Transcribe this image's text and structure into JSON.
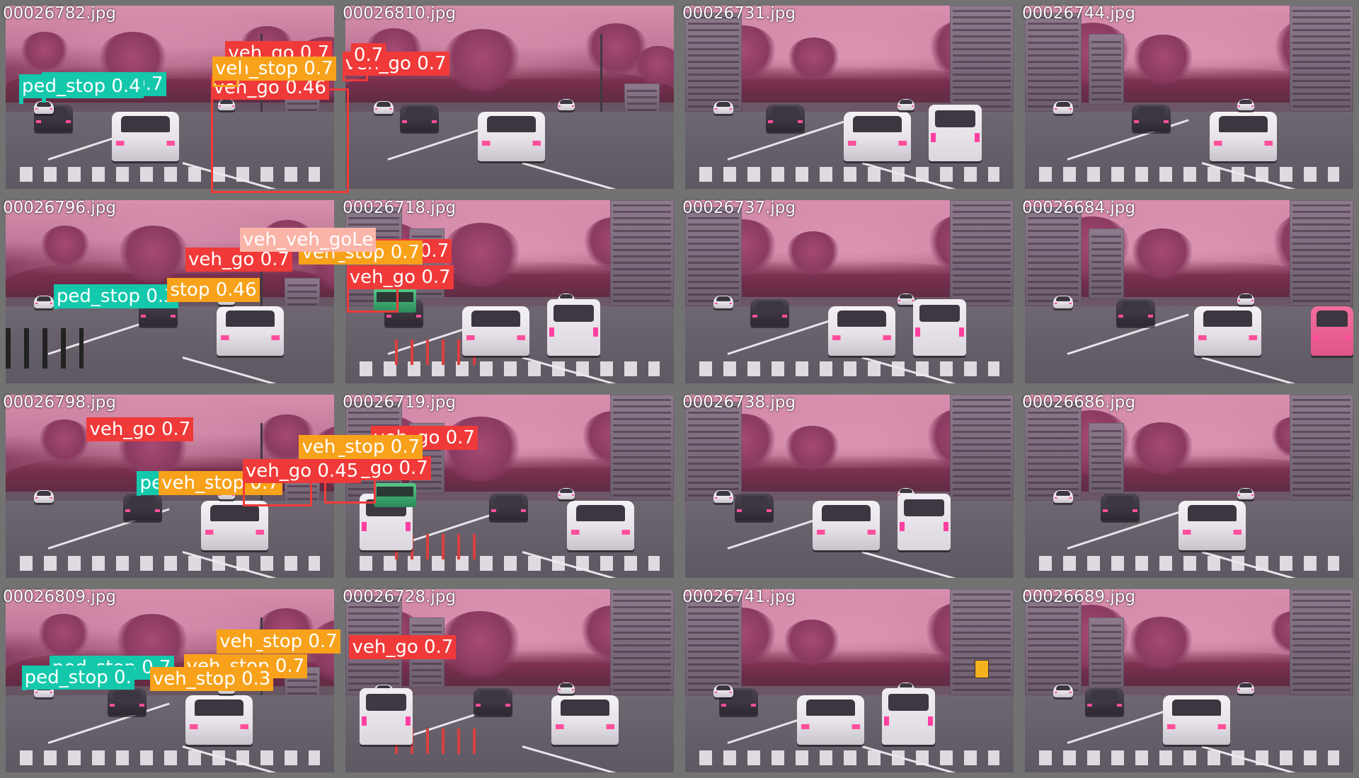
{
  "colors": {
    "veh_go": "#f03a39",
    "ped_stop": "#14c8ac",
    "veh_stop": "#f8a21b",
    "frame_border": "#727272"
  },
  "tiles": [
    {
      "file": "00026782.jpg",
      "scene": "lr",
      "detections": [
        {
          "label": "veh_go 0.46",
          "cls": "veh_go"
        }
      ]
    },
    {
      "file": "00026810.jpg",
      "scene": "lr",
      "detections": [
        {
          "label": "ped_stop 0.7",
          "cls": "ped_stop"
        },
        {
          "label": "veh_go 0.7",
          "cls": "veh_go"
        }
      ]
    },
    {
      "file": "00026731.jpg",
      "scene": "city",
      "detections": [
        {
          "label": "veh_go 0.7",
          "cls": "veh_go"
        },
        {
          "label": "0.7",
          "cls": "veh_go"
        }
      ]
    },
    {
      "file": "00026744.jpg",
      "scene": "city",
      "detections": [
        {
          "label": "ped_stop 0.4",
          "cls": "ped_stop"
        },
        {
          "label": "veh_stop 0.7",
          "cls": "veh_stop"
        },
        {
          "label": "vel",
          "cls": "veh_stop"
        }
      ]
    },
    {
      "file": "00026796.jpg",
      "scene": "lr",
      "detections": [
        {
          "label": "veh_go 0.7",
          "cls": "veh_go"
        },
        {
          "label": "veh_go 0.7",
          "cls": "veh_go"
        },
        {
          "label": "veh_go 0.7",
          "cls": "veh_go"
        }
      ]
    },
    {
      "file": "00026718.jpg",
      "scene": "city",
      "detections": [
        {
          "label": "veh_stop 0.7",
          "cls": "veh_stop"
        },
        {
          "label": "veh",
          "cls": "veh_stop"
        }
      ]
    },
    {
      "file": "00026737.jpg",
      "scene": "city",
      "detections": [
        {
          "label": "ped_stop 0.3",
          "cls": "ped_stop"
        },
        {
          "label": "stop 0.46",
          "cls": "veh_stop"
        }
      ]
    },
    {
      "file": "00026684.jpg",
      "scene": "city",
      "detections": [
        {
          "label": "veh_veh_goLe",
          "cls": "veh_go_pale"
        }
      ]
    },
    {
      "file": "00026798.jpg",
      "scene": "lr",
      "detections": [
        {
          "label": "veh_go 0.7",
          "cls": "veh_go"
        },
        {
          "label": "ped_stop 0.7",
          "cls": "ped_stop"
        },
        {
          "label": "veh_go 0.7",
          "cls": "veh_go"
        },
        {
          "label": "veh_go 0.7",
          "cls": "veh_go"
        }
      ]
    },
    {
      "file": "00026719.jpg",
      "scene": "city",
      "detections": [
        {
          "label": "veh_stop 0.7",
          "cls": "veh_stop"
        },
        {
          "label": "veh",
          "cls": "veh_stop"
        }
      ]
    },
    {
      "file": "00026738.jpg",
      "scene": "city",
      "detections": [
        {
          "label": "veh_stop 0.7",
          "cls": "veh_stop"
        }
      ]
    },
    {
      "file": "00026686.jpg",
      "scene": "city",
      "detections": [
        {
          "label": "veh_go 0.45",
          "cls": "veh_go"
        }
      ]
    },
    {
      "file": "00026809.jpg",
      "scene": "lr",
      "detections": [
        {
          "label": "ped_stop 0.7",
          "cls": "ped_stop"
        },
        {
          "label": "veh_go 0.7",
          "cls": "veh_go"
        }
      ]
    },
    {
      "file": "00026728.jpg",
      "scene": "city",
      "detections": [
        {
          "label": "veh_stop 0.7",
          "cls": "veh_stop"
        },
        {
          "label": "veh",
          "cls": "veh_stop"
        }
      ]
    },
    {
      "file": "00026741.jpg",
      "scene": "city",
      "detections": [
        {
          "label": "ped_stop 0.",
          "cls": "ped_stop"
        },
        {
          "label": "veh_stop 0.7",
          "cls": "veh_stop"
        },
        {
          "label": "veh_stop 0.3",
          "cls": "veh_stop"
        }
      ]
    },
    {
      "file": "00026689.jpg",
      "scene": "city",
      "detections": []
    }
  ]
}
